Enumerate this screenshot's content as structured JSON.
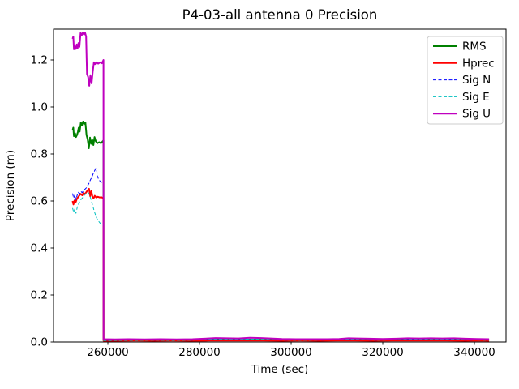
{
  "chart_data": {
    "type": "line",
    "title": "P4-03-all antenna 0 Precision",
    "xlabel": "Time (sec)",
    "ylabel": "Precision (m)",
    "xlim": [
      248140,
      346900
    ],
    "ylim": [
      0,
      1.331
    ],
    "x_ticks": [
      260000,
      280000,
      300000,
      320000,
      340000
    ],
    "y_ticks": [
      0.0,
      0.2,
      0.4,
      0.6,
      0.8,
      1.0,
      1.2
    ],
    "grid": false,
    "legend_position": "upper right",
    "legend_border_color": "#cccccc",
    "axis_color": "#000000",
    "background_color": "#ffffff",
    "series": [
      {
        "name": "RMS",
        "color": "#008000",
        "style": "solid",
        "width": 2,
        "points": [
          [
            252300,
            0.9
          ],
          [
            252450,
            0.912
          ],
          [
            252600,
            0.876
          ],
          [
            252850,
            0.888
          ],
          [
            253050,
            0.872
          ],
          [
            253250,
            0.88
          ],
          [
            253450,
            0.893
          ],
          [
            253650,
            0.912
          ],
          [
            253850,
            0.895
          ],
          [
            254100,
            0.934
          ],
          [
            254350,
            0.922
          ],
          [
            254600,
            0.938
          ],
          [
            254850,
            0.928
          ],
          [
            255100,
            0.934
          ],
          [
            255350,
            0.88
          ],
          [
            255600,
            0.862
          ],
          [
            255850,
            0.824
          ],
          [
            256100,
            0.87
          ],
          [
            256350,
            0.843
          ],
          [
            256600,
            0.86
          ],
          [
            256850,
            0.838
          ],
          [
            257100,
            0.872
          ],
          [
            257350,
            0.855
          ],
          [
            257700,
            0.846
          ],
          [
            258100,
            0.85
          ],
          [
            258500,
            0.846
          ],
          [
            258800,
            0.852
          ],
          [
            259050,
            0.858
          ],
          [
            259060,
            0.008
          ],
          [
            261000,
            0.008
          ],
          [
            264000,
            0.009
          ],
          [
            268000,
            0.008
          ],
          [
            272000,
            0.009
          ],
          [
            276000,
            0.008
          ],
          [
            280000,
            0.009
          ],
          [
            284000,
            0.01
          ],
          [
            288000,
            0.009
          ],
          [
            292000,
            0.01
          ],
          [
            296000,
            0.009
          ],
          [
            300000,
            0.008
          ],
          [
            304000,
            0.009
          ],
          [
            308000,
            0.008
          ],
          [
            312000,
            0.01
          ],
          [
            316000,
            0.009
          ],
          [
            320000,
            0.009
          ],
          [
            324000,
            0.01
          ],
          [
            328000,
            0.01
          ],
          [
            332000,
            0.009
          ],
          [
            336000,
            0.01
          ],
          [
            340000,
            0.009
          ],
          [
            343200,
            0.009
          ]
        ]
      },
      {
        "name": "Hprec",
        "color": "#ff0000",
        "style": "solid",
        "width": 2,
        "points": [
          [
            252300,
            0.6
          ],
          [
            252500,
            0.585
          ],
          [
            252750,
            0.603
          ],
          [
            253000,
            0.596
          ],
          [
            253250,
            0.61
          ],
          [
            253500,
            0.616
          ],
          [
            253800,
            0.624
          ],
          [
            254100,
            0.63
          ],
          [
            254400,
            0.624
          ],
          [
            254700,
            0.634
          ],
          [
            255000,
            0.629
          ],
          [
            255300,
            0.638
          ],
          [
            255600,
            0.645
          ],
          [
            255900,
            0.652
          ],
          [
            256150,
            0.62
          ],
          [
            256400,
            0.643
          ],
          [
            256650,
            0.617
          ],
          [
            256900,
            0.612
          ],
          [
            257150,
            0.622
          ],
          [
            257450,
            0.615
          ],
          [
            257800,
            0.618
          ],
          [
            258200,
            0.615
          ],
          [
            258600,
            0.616
          ],
          [
            259050,
            0.612
          ],
          [
            259060,
            0.005
          ],
          [
            262000,
            0.005
          ],
          [
            266000,
            0.006
          ],
          [
            270000,
            0.005
          ],
          [
            274000,
            0.006
          ],
          [
            278000,
            0.005
          ],
          [
            282000,
            0.006
          ],
          [
            286000,
            0.006
          ],
          [
            290000,
            0.006
          ],
          [
            294000,
            0.006
          ],
          [
            298000,
            0.005
          ],
          [
            302000,
            0.006
          ],
          [
            306000,
            0.005
          ],
          [
            310000,
            0.006
          ],
          [
            314000,
            0.006
          ],
          [
            318000,
            0.005
          ],
          [
            322000,
            0.006
          ],
          [
            326000,
            0.006
          ],
          [
            330000,
            0.006
          ],
          [
            334000,
            0.006
          ],
          [
            338000,
            0.005
          ],
          [
            341000,
            0.006
          ],
          [
            343200,
            0.005
          ]
        ]
      },
      {
        "name": "Sig N",
        "color": "#0000ff",
        "style": "dashed",
        "width": 1,
        "points": [
          [
            252300,
            0.632
          ],
          [
            252550,
            0.612
          ],
          [
            252800,
            0.626
          ],
          [
            253050,
            0.605
          ],
          [
            253300,
            0.625
          ],
          [
            253550,
            0.637
          ],
          [
            253800,
            0.63
          ],
          [
            254100,
            0.641
          ],
          [
            254400,
            0.635
          ],
          [
            254700,
            0.646
          ],
          [
            255000,
            0.65
          ],
          [
            255300,
            0.656
          ],
          [
            255600,
            0.665
          ],
          [
            255900,
            0.676
          ],
          [
            256200,
            0.69
          ],
          [
            256500,
            0.701
          ],
          [
            256800,
            0.716
          ],
          [
            257100,
            0.728
          ],
          [
            257350,
            0.738
          ],
          [
            257550,
            0.73
          ],
          [
            257750,
            0.703
          ],
          [
            258000,
            0.692
          ],
          [
            258300,
            0.684
          ],
          [
            258600,
            0.68
          ],
          [
            258850,
            0.676
          ],
          [
            259050,
            0.672
          ],
          [
            259060,
            0.008
          ],
          [
            262500,
            0.008
          ],
          [
            266500,
            0.009
          ],
          [
            270500,
            0.008
          ],
          [
            274500,
            0.009
          ],
          [
            278500,
            0.008
          ],
          [
            282500,
            0.01
          ],
          [
            286500,
            0.009
          ],
          [
            290500,
            0.01
          ],
          [
            294500,
            0.009
          ],
          [
            298500,
            0.008
          ],
          [
            302500,
            0.009
          ],
          [
            306500,
            0.008
          ],
          [
            310500,
            0.01
          ],
          [
            314500,
            0.009
          ],
          [
            318500,
            0.008
          ],
          [
            322500,
            0.009
          ],
          [
            326500,
            0.01
          ],
          [
            330500,
            0.009
          ],
          [
            334500,
            0.01
          ],
          [
            338500,
            0.008
          ],
          [
            341500,
            0.009
          ],
          [
            343200,
            0.008
          ]
        ]
      },
      {
        "name": "Sig E",
        "color": "#00bfbf",
        "style": "dashed",
        "width": 1,
        "points": [
          [
            252300,
            0.57
          ],
          [
            252550,
            0.552
          ],
          [
            252800,
            0.566
          ],
          [
            253050,
            0.548
          ],
          [
            253300,
            0.572
          ],
          [
            253550,
            0.585
          ],
          [
            253800,
            0.595
          ],
          [
            254100,
            0.605
          ],
          [
            254400,
            0.612
          ],
          [
            254700,
            0.62
          ],
          [
            255000,
            0.628
          ],
          [
            255300,
            0.633
          ],
          [
            255600,
            0.638
          ],
          [
            255850,
            0.631
          ],
          [
            256100,
            0.62
          ],
          [
            256400,
            0.601
          ],
          [
            256700,
            0.58
          ],
          [
            257000,
            0.558
          ],
          [
            257300,
            0.54
          ],
          [
            257600,
            0.526
          ],
          [
            257900,
            0.516
          ],
          [
            258300,
            0.506
          ],
          [
            258700,
            0.5
          ],
          [
            259050,
            0.497
          ],
          [
            259060,
            0.006
          ],
          [
            262000,
            0.007
          ],
          [
            266000,
            0.007
          ],
          [
            270000,
            0.008
          ],
          [
            274000,
            0.007
          ],
          [
            278000,
            0.008
          ],
          [
            281500,
            0.01
          ],
          [
            284500,
            0.012
          ],
          [
            287500,
            0.011
          ],
          [
            290500,
            0.012
          ],
          [
            293500,
            0.011
          ],
          [
            296500,
            0.009
          ],
          [
            300000,
            0.008
          ],
          [
            304000,
            0.008
          ],
          [
            308000,
            0.009
          ],
          [
            312000,
            0.011
          ],
          [
            315000,
            0.01
          ],
          [
            319000,
            0.008
          ],
          [
            323000,
            0.009
          ],
          [
            327000,
            0.011
          ],
          [
            331000,
            0.01
          ],
          [
            335000,
            0.011
          ],
          [
            339000,
            0.009
          ],
          [
            341500,
            0.008
          ],
          [
            343200,
            0.008
          ]
        ]
      },
      {
        "name": "Sig U",
        "color": "#bf00bf",
        "style": "solid",
        "width": 2,
        "points": [
          [
            252300,
            1.29
          ],
          [
            252450,
            1.3
          ],
          [
            252600,
            1.245
          ],
          [
            252800,
            1.258
          ],
          [
            253000,
            1.247
          ],
          [
            253200,
            1.266
          ],
          [
            253400,
            1.25
          ],
          [
            253600,
            1.272
          ],
          [
            253800,
            1.256
          ],
          [
            254050,
            1.315
          ],
          [
            254300,
            1.305
          ],
          [
            254550,
            1.317
          ],
          [
            254800,
            1.308
          ],
          [
            255050,
            1.315
          ],
          [
            255250,
            1.3
          ],
          [
            255450,
            1.14
          ],
          [
            255700,
            1.128
          ],
          [
            255950,
            1.09
          ],
          [
            256200,
            1.135
          ],
          [
            256450,
            1.1
          ],
          [
            256700,
            1.15
          ],
          [
            256950,
            1.19
          ],
          [
            257200,
            1.182
          ],
          [
            257500,
            1.19
          ],
          [
            257900,
            1.184
          ],
          [
            258300,
            1.19
          ],
          [
            258700,
            1.186
          ],
          [
            259050,
            1.2
          ],
          [
            259060,
            0.012
          ],
          [
            261500,
            0.011
          ],
          [
            264500,
            0.012
          ],
          [
            268000,
            0.011
          ],
          [
            271500,
            0.012
          ],
          [
            275000,
            0.011
          ],
          [
            278500,
            0.012
          ],
          [
            281000,
            0.014
          ],
          [
            283500,
            0.017
          ],
          [
            286000,
            0.016
          ],
          [
            288500,
            0.015
          ],
          [
            291000,
            0.018
          ],
          [
            293500,
            0.017
          ],
          [
            295500,
            0.015
          ],
          [
            298000,
            0.013
          ],
          [
            301000,
            0.012
          ],
          [
            304500,
            0.012
          ],
          [
            308000,
            0.012
          ],
          [
            310500,
            0.013
          ],
          [
            312500,
            0.016
          ],
          [
            314500,
            0.015
          ],
          [
            317000,
            0.014
          ],
          [
            320000,
            0.013
          ],
          [
            323000,
            0.014
          ],
          [
            325500,
            0.016
          ],
          [
            328000,
            0.015
          ],
          [
            330500,
            0.016
          ],
          [
            333000,
            0.015
          ],
          [
            335500,
            0.016
          ],
          [
            338000,
            0.014
          ],
          [
            340500,
            0.013
          ],
          [
            343200,
            0.012
          ]
        ]
      }
    ]
  }
}
